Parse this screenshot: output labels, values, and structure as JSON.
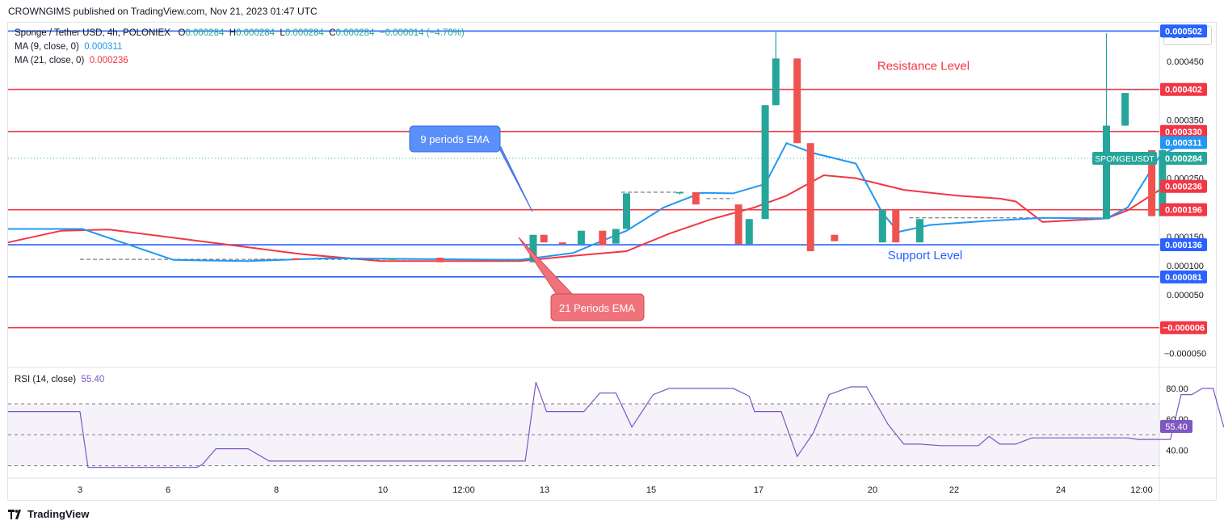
{
  "header": {
    "published": "CROWNGIMS published on TradingView.com, Nov 21, 2023 01:47 UTC"
  },
  "legend": {
    "symbol": "Sponge / Tether USD, 4h, POLONIEX",
    "ohlc_o_label": "O",
    "ohlc_o": "0.000284",
    "ohlc_h_label": "H",
    "ohlc_h": "0.000284",
    "ohlc_l_label": "L",
    "ohlc_l": "0.000284",
    "ohlc_c_label": "C",
    "ohlc_c": "0.000284",
    "change": "−0.000014 (−4.70%)",
    "ma9_label": "MA (9, close, 0)",
    "ma9_value": "0.000311",
    "ma21_label": "MA (21, close, 0)",
    "ma21_value": "0.000236",
    "rsi_label": "RSI (14, close)",
    "rsi_value": "55.40"
  },
  "currency": "USDT",
  "footer": {
    "brand": "TradingView"
  },
  "colors": {
    "up": "#26a69a",
    "down": "#ef5350",
    "ma9": "#2196f3",
    "ma21": "#f23645",
    "rsi": "#7e57c2",
    "hline_blue": "#2962ff",
    "hline_red": "#f23645",
    "callout_blue": "#5b8ff9",
    "callout_red": "#f0737b"
  },
  "chart_data": [
    {
      "type": "candlestick",
      "title": "Sponge / Tether USD, 4h, POLONIEX",
      "y_range": [
        -7e-05,
        0.000515
      ],
      "x_ticks": [
        "3",
        "6",
        "8",
        "10",
        "12:00",
        "13",
        "15",
        "17",
        "20",
        "22",
        "24",
        "12:00"
      ],
      "y_ticks": [
        "0.000450",
        "0.000350",
        "0.000250",
        "0.000150",
        "0.000100",
        "0.000050",
        "−0.000050"
      ],
      "price_labels": [
        {
          "text": "0.000502",
          "value": 0.000502,
          "color": "#2962ff"
        },
        {
          "text": "0.000402",
          "value": 0.000402,
          "color": "#f23645"
        },
        {
          "text": "0.000330",
          "value": 0.00033,
          "color": "#f23645"
        },
        {
          "text": "0.000311",
          "value": 0.000311,
          "color": "#2196f3"
        },
        {
          "text": "0.000284",
          "value": 0.000284,
          "color": "#26a69a"
        },
        {
          "text": "0.000236",
          "value": 0.000236,
          "color": "#f23645"
        },
        {
          "text": "0.000196",
          "value": 0.000196,
          "color": "#f23645"
        },
        {
          "text": "0.000136",
          "value": 0.000136,
          "color": "#2962ff"
        },
        {
          "text": "0.000081",
          "value": 8.1e-05,
          "color": "#2962ff"
        },
        {
          "text": "−0.000006",
          "value": -6e-06,
          "color": "#f23645"
        }
      ],
      "symbol_tag": "SPONGEUSDT",
      "horizontal_levels": [
        {
          "value": 0.000502,
          "color": "blue"
        },
        {
          "value": 0.000402,
          "color": "red"
        },
        {
          "value": 0.00033,
          "color": "red"
        },
        {
          "value": 0.000196,
          "color": "red"
        },
        {
          "value": 0.000136,
          "color": "blue"
        },
        {
          "value": 8.1e-05,
          "color": "blue"
        },
        {
          "value": -6e-06,
          "color": "red"
        }
      ],
      "annotations": {
        "resistance": "Resistance Level",
        "support": "Support Level",
        "ema9": "9 periods EMA",
        "ema21": "21 Periods EMA"
      },
      "candles": [
        {
          "t": 5.4,
          "o": 0.000113,
          "h": 0.000113,
          "l": 0.00011,
          "c": 0.00011
        },
        {
          "t": 7.2,
          "o": 0.00011,
          "h": 0.000113,
          "l": 0.00011,
          "c": 0.000113
        },
        {
          "t": 8.1,
          "o": 0.000114,
          "h": 0.000114,
          "l": 0.000106,
          "c": 0.000106
        },
        {
          "t": 9.85,
          "o": 0.000106,
          "h": 0.000153,
          "l": 0.000106,
          "c": 0.000153
        },
        {
          "t": 10.05,
          "o": 0.000153,
          "h": 0.000153,
          "l": 0.00014,
          "c": 0.00014
        },
        {
          "t": 10.4,
          "o": 0.00014,
          "h": 0.00014,
          "l": 0.000137,
          "c": 0.000137
        },
        {
          "t": 10.75,
          "o": 0.000137,
          "h": 0.00016,
          "l": 0.000137,
          "c": 0.00016
        },
        {
          "t": 11.15,
          "o": 0.00016,
          "h": 0.00016,
          "l": 0.000135,
          "c": 0.000135
        },
        {
          "t": 11.4,
          "o": 0.000138,
          "h": 0.000163,
          "l": 0.000138,
          "c": 0.000163
        },
        {
          "t": 11.6,
          "o": 0.000163,
          "h": 0.000224,
          "l": 0.000163,
          "c": 0.000224
        },
        {
          "t": 12.6,
          "o": 0.000224,
          "h": 0.000226,
          "l": 0.000222,
          "c": 0.000226
        },
        {
          "t": 12.9,
          "o": 0.000226,
          "h": 0.000226,
          "l": 0.000205,
          "c": 0.000205
        },
        {
          "t": 13.7,
          "o": 0.000205,
          "h": 0.000205,
          "l": 0.000137,
          "c": 0.000137
        },
        {
          "t": 13.9,
          "o": 0.000137,
          "h": 0.00018,
          "l": 0.000137,
          "c": 0.00018
        },
        {
          "t": 14.2,
          "o": 0.00018,
          "h": 0.000375,
          "l": 0.00018,
          "c": 0.000375
        },
        {
          "t": 14.4,
          "o": 0.000375,
          "h": 0.0005,
          "l": 0.000375,
          "c": 0.000455
        },
        {
          "t": 14.8,
          "o": 0.000455,
          "h": 0.000455,
          "l": 0.00031,
          "c": 0.00031
        },
        {
          "t": 15.05,
          "o": 0.00031,
          "h": 0.00031,
          "l": 0.000125,
          "c": 0.000125
        },
        {
          "t": 15.5,
          "o": 0.000153,
          "h": 0.000153,
          "l": 0.000142,
          "c": 0.000142
        },
        {
          "t": 16.4,
          "o": 0.00014,
          "h": 0.000196,
          "l": 0.00014,
          "c": 0.000196
        },
        {
          "t": 16.65,
          "o": 0.000196,
          "h": 0.000196,
          "l": 0.00014,
          "c": 0.00014
        },
        {
          "t": 17.1,
          "o": 0.00014,
          "h": 0.00018,
          "l": 0.00014,
          "c": 0.00018
        },
        {
          "t": 20.6,
          "o": 0.00018,
          "h": 0.000498,
          "l": 0.00018,
          "c": 0.00034
        },
        {
          "t": 20.95,
          "o": 0.00034,
          "h": 0.000396,
          "l": 0.00034,
          "c": 0.000396
        },
        {
          "t": 21.45,
          "o": 0.000298,
          "h": 0.000298,
          "l": 0.000185,
          "c": 0.000185
        },
        {
          "t": 21.65,
          "o": 0.000185,
          "h": 0.000299,
          "l": 0.000185,
          "c": 0.000298
        }
      ],
      "ma9": [
        [
          0,
          0.000163
        ],
        [
          1.4,
          0.000163
        ],
        [
          3.1,
          0.00011
        ],
        [
          4.5,
          0.000108
        ],
        [
          6,
          0.000113
        ],
        [
          9.6,
          0.00011
        ],
        [
          10.6,
          0.000122
        ],
        [
          11.6,
          0.00016
        ],
        [
          12.3,
          0.0002
        ],
        [
          13.0,
          0.000225
        ],
        [
          13.6,
          0.000224
        ],
        [
          14.2,
          0.00024
        ],
        [
          14.6,
          0.00031
        ],
        [
          15.1,
          0.000293
        ],
        [
          15.9,
          0.000275
        ],
        [
          16.4,
          0.00019
        ],
        [
          16.7,
          0.000158
        ],
        [
          17.3,
          0.00017
        ],
        [
          18.4,
          0.000177
        ],
        [
          19.4,
          0.000182
        ],
        [
          20.6,
          0.000181
        ],
        [
          21.0,
          0.0002
        ],
        [
          21.6,
          0.000288
        ],
        [
          22.1,
          0.000312
        ]
      ],
      "ma21": [
        [
          0,
          0.00014
        ],
        [
          1.0,
          0.00016
        ],
        [
          1.9,
          0.000162
        ],
        [
          5.5,
          0.00012
        ],
        [
          7.0,
          0.000108
        ],
        [
          9.6,
          0.000108
        ],
        [
          10.6,
          0.000117
        ],
        [
          11.6,
          0.000125
        ],
        [
          12.4,
          0.000155
        ],
        [
          13.2,
          0.00018
        ],
        [
          14.0,
          0.0002
        ],
        [
          14.6,
          0.00022
        ],
        [
          15.3,
          0.000255
        ],
        [
          15.9,
          0.00025
        ],
        [
          16.8,
          0.00023
        ],
        [
          17.8,
          0.00022
        ],
        [
          18.6,
          0.000215
        ],
        [
          18.9,
          0.00021
        ],
        [
          19.4,
          0.000175
        ],
        [
          20.6,
          0.000181
        ],
        [
          21.0,
          0.000195
        ],
        [
          21.6,
          0.00023
        ],
        [
          22.1,
          0.000243
        ]
      ]
    },
    {
      "type": "line",
      "title": "RSI (14, close)",
      "y_range": [
        22,
        93
      ],
      "y_ticks": [
        "80.00",
        "60.00",
        "40.00"
      ],
      "bands": [
        70,
        50,
        30
      ],
      "current": "55.40",
      "values": [
        [
          0,
          65
        ],
        [
          1.35,
          65
        ],
        [
          1.5,
          29
        ],
        [
          3.55,
          29
        ],
        [
          3.65,
          31
        ],
        [
          3.9,
          41
        ],
        [
          4.5,
          41
        ],
        [
          4.9,
          33
        ],
        [
          9.7,
          33
        ],
        [
          9.9,
          84
        ],
        [
          10.1,
          65
        ],
        [
          10.8,
          65
        ],
        [
          11.1,
          77
        ],
        [
          11.4,
          77
        ],
        [
          11.7,
          55
        ],
        [
          12.1,
          76
        ],
        [
          12.4,
          80
        ],
        [
          13.6,
          80
        ],
        [
          13.9,
          75
        ],
        [
          14.0,
          65
        ],
        [
          14.5,
          65
        ],
        [
          14.8,
          36
        ],
        [
          15.1,
          51
        ],
        [
          15.4,
          76
        ],
        [
          15.8,
          81
        ],
        [
          16.1,
          81
        ],
        [
          16.5,
          57
        ],
        [
          16.8,
          44
        ],
        [
          17.1,
          44
        ],
        [
          17.5,
          43
        ],
        [
          18.2,
          43
        ],
        [
          18.4,
          49
        ],
        [
          18.6,
          44
        ],
        [
          18.9,
          44
        ],
        [
          19.2,
          48
        ],
        [
          21.0,
          48
        ],
        [
          21.2,
          47
        ],
        [
          21.8,
          47
        ],
        [
          22.0,
          76
        ],
        [
          22.2,
          76
        ],
        [
          22.4,
          80
        ],
        [
          22.6,
          80
        ],
        [
          22.8,
          55
        ],
        [
          23.0,
          53.5
        ]
      ]
    }
  ]
}
